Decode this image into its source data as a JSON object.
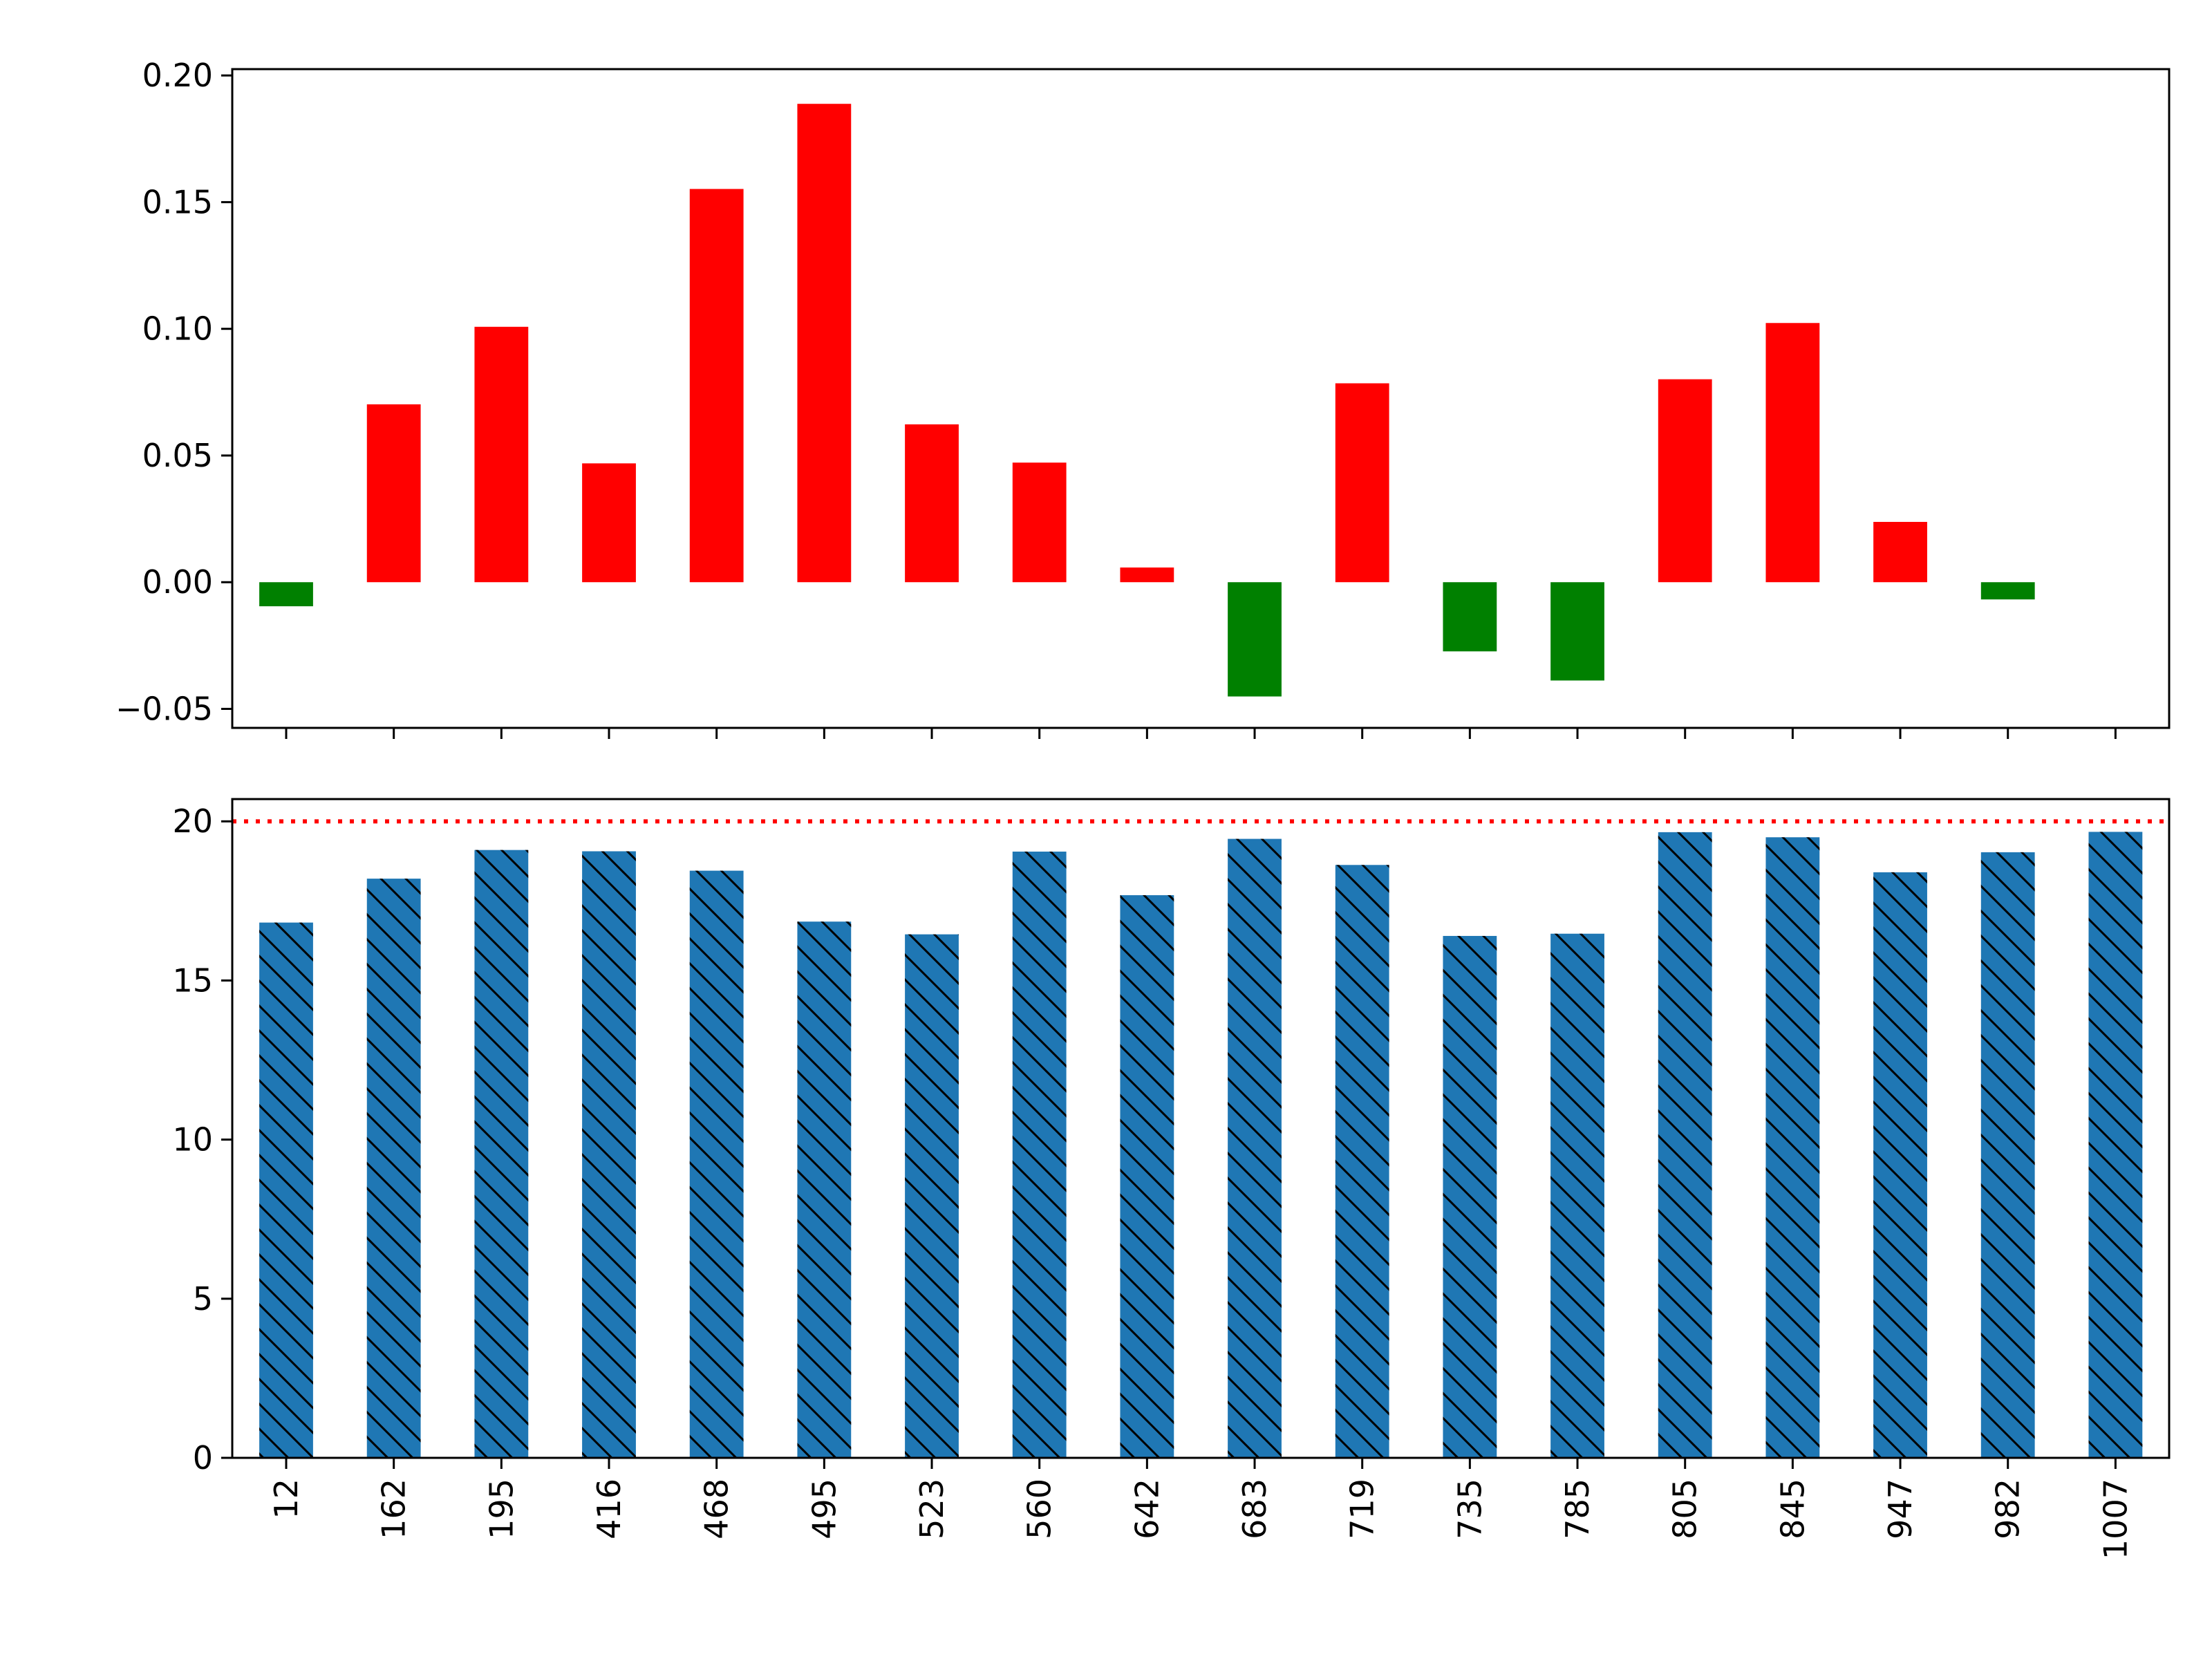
{
  "chart_data": [
    {
      "type": "bar",
      "panel": "top",
      "categories": [
        "12",
        "162",
        "195",
        "416",
        "468",
        "495",
        "523",
        "560",
        "642",
        "683",
        "719",
        "735",
        "785",
        "805",
        "845",
        "947",
        "982",
        "1007"
      ],
      "values": [
        -0.0095,
        0.0702,
        0.1008,
        0.0469,
        0.1552,
        0.1888,
        0.0623,
        0.0472,
        0.0058,
        -0.0451,
        0.0785,
        -0.0273,
        -0.0388,
        0.0801,
        0.1023,
        0.0238,
        -0.0068,
        null
      ],
      "colors": {
        "positive": "#ff0000",
        "negative": "#008000"
      },
      "ylim": [
        -0.0575,
        0.2025
      ],
      "yticks": [
        -0.05,
        0.0,
        0.05,
        0.1,
        0.15,
        0.2
      ],
      "ytick_labels": [
        "−0.05",
        "0.00",
        "0.05",
        "0.10",
        "0.15",
        "0.20"
      ],
      "grid": false,
      "title": "",
      "xlabel": "",
      "ylabel": ""
    },
    {
      "type": "bar",
      "panel": "bottom",
      "categories": [
        "12",
        "162",
        "195",
        "416",
        "468",
        "495",
        "523",
        "560",
        "642",
        "683",
        "719",
        "735",
        "785",
        "805",
        "845",
        "947",
        "982",
        "1007"
      ],
      "values": [
        16.82,
        18.2,
        19.1,
        19.06,
        18.45,
        16.85,
        16.45,
        19.05,
        17.68,
        19.45,
        18.63,
        16.4,
        16.47,
        19.66,
        19.5,
        18.4,
        19.03,
        19.67
      ],
      "color": "#1f77b4",
      "hatch": "backslash",
      "reference_line": {
        "value": 20,
        "color": "#ff0000",
        "style": "dotted"
      },
      "ylim": [
        0,
        20.7
      ],
      "yticks": [
        0,
        5,
        10,
        15,
        20
      ],
      "ytick_labels": [
        "0",
        "5",
        "10",
        "15",
        "20"
      ],
      "xtick_rotation": 90,
      "grid": false,
      "title": "",
      "xlabel": "",
      "ylabel": ""
    }
  ]
}
